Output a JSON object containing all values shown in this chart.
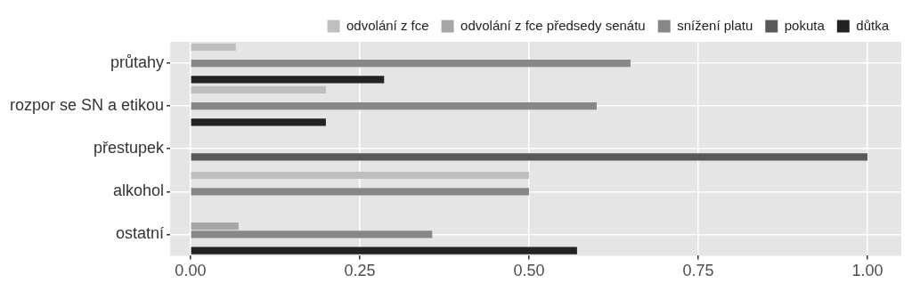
{
  "chart_data": {
    "type": "bar",
    "orientation": "horizontal",
    "categories": [
      "průtahy",
      "rozpor se SN a etikou",
      "přestupek",
      "alkohol",
      "ostatní"
    ],
    "series": [
      {
        "name": "odvolání z fce",
        "color": "#bfbfbf",
        "values": [
          0.067,
          0.2,
          null,
          0.5,
          null
        ]
      },
      {
        "name": "odvolání z fce předsedy senátu",
        "color": "#a6a6a6",
        "values": [
          null,
          null,
          null,
          null,
          0.071
        ]
      },
      {
        "name": "snížení platu",
        "color": "#878787",
        "values": [
          0.65,
          0.6,
          null,
          0.5,
          0.357
        ]
      },
      {
        "name": "pokuta",
        "color": "#595959",
        "values": [
          null,
          null,
          1.0,
          null,
          null
        ]
      },
      {
        "name": "důtka",
        "color": "#232323",
        "values": [
          0.286,
          0.2,
          null,
          null,
          0.571
        ]
      }
    ],
    "xlim": [
      -0.03,
      1.05
    ],
    "xticks": [
      {
        "value": 0,
        "label": "0.00"
      },
      {
        "value": 0.25,
        "label": "0.25"
      },
      {
        "value": 0.5,
        "label": "0.50"
      },
      {
        "value": 0.75,
        "label": "0.75"
      },
      {
        "value": 1,
        "label": "1.00"
      }
    ],
    "grid": true,
    "legend": "top right"
  }
}
